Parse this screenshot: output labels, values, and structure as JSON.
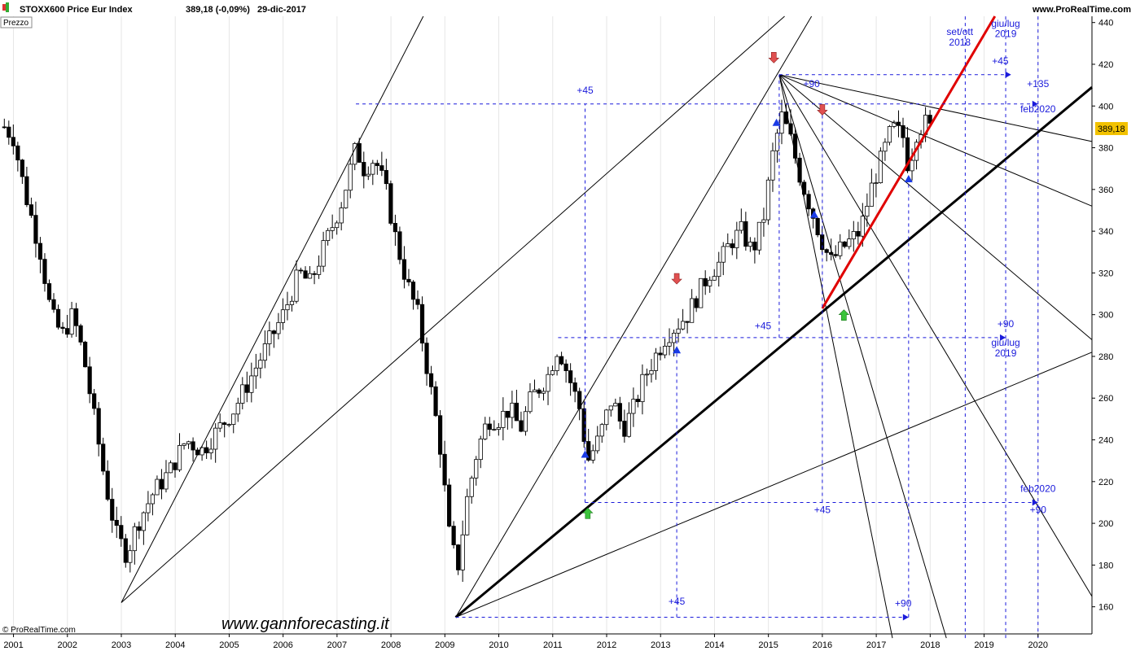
{
  "header": {
    "symbol": "STOXX600 Price Eur Index",
    "quote": "389,18 (-0,09%)",
    "date": "29-dic-2017",
    "site": "www.ProRealTime.com",
    "panel_label": "Prezzo"
  },
  "footer": {
    "copyright": "© ProRealTime.com",
    "watermark": "www.gannforecasting.it"
  },
  "colors": {
    "up_candle": "#ffffff",
    "down_candle": "#000000",
    "guide": "#1a1adb",
    "red_line": "#e00000",
    "last_price_bg": "#f2c200"
  },
  "chart_data": {
    "type": "candlestick",
    "title": "STOXX600 Price Eur Index",
    "ylim": [
      147,
      443
    ],
    "xlim": [
      2000.75,
      2021.0
    ],
    "y_ticks": [
      160,
      180,
      200,
      220,
      240,
      260,
      280,
      300,
      320,
      340,
      360,
      380,
      400,
      420,
      440
    ],
    "x_ticks": [
      2001,
      2002,
      2003,
      2004,
      2005,
      2006,
      2007,
      2008,
      2009,
      2010,
      2011,
      2012,
      2013,
      2014,
      2015,
      2016,
      2017,
      2018,
      2019,
      2020
    ],
    "last_price": "389,18",
    "close_path": [
      [
        2000.83,
        390
      ],
      [
        2001.0,
        385
      ],
      [
        2001.2,
        360
      ],
      [
        2001.5,
        330
      ],
      [
        2001.7,
        300
      ],
      [
        2001.9,
        290
      ],
      [
        2002.1,
        300
      ],
      [
        2002.3,
        280
      ],
      [
        2002.5,
        250
      ],
      [
        2002.7,
        220
      ],
      [
        2002.9,
        195
      ],
      [
        2003.1,
        185
      ],
      [
        2003.3,
        200
      ],
      [
        2003.6,
        215
      ],
      [
        2003.9,
        225
      ],
      [
        2004.2,
        240
      ],
      [
        2004.5,
        235
      ],
      [
        2004.8,
        245
      ],
      [
        2005.1,
        255
      ],
      [
        2005.4,
        270
      ],
      [
        2005.7,
        285
      ],
      [
        2006.0,
        300
      ],
      [
        2006.3,
        320
      ],
      [
        2006.5,
        315
      ],
      [
        2006.8,
        335
      ],
      [
        2007.1,
        355
      ],
      [
        2007.35,
        380
      ],
      [
        2007.5,
        370
      ],
      [
        2007.7,
        375
      ],
      [
        2007.9,
        360
      ],
      [
        2008.1,
        335
      ],
      [
        2008.3,
        315
      ],
      [
        2008.5,
        300
      ],
      [
        2008.7,
        270
      ],
      [
        2008.9,
        240
      ],
      [
        2009.1,
        190
      ],
      [
        2009.25,
        180
      ],
      [
        2009.4,
        210
      ],
      [
        2009.6,
        235
      ],
      [
        2009.8,
        250
      ],
      [
        2010.0,
        250
      ],
      [
        2010.2,
        255
      ],
      [
        2010.4,
        245
      ],
      [
        2010.6,
        260
      ],
      [
        2010.9,
        270
      ],
      [
        2011.1,
        285
      ],
      [
        2011.3,
        270
      ],
      [
        2011.5,
        255
      ],
      [
        2011.65,
        230
      ],
      [
        2011.85,
        240
      ],
      [
        2012.1,
        260
      ],
      [
        2012.3,
        245
      ],
      [
        2012.5,
        255
      ],
      [
        2012.7,
        270
      ],
      [
        2012.9,
        280
      ],
      [
        2013.1,
        290
      ],
      [
        2013.3,
        295
      ],
      [
        2013.5,
        300
      ],
      [
        2013.7,
        310
      ],
      [
        2013.9,
        320
      ],
      [
        2014.1,
        325
      ],
      [
        2014.3,
        335
      ],
      [
        2014.5,
        340
      ],
      [
        2014.7,
        330
      ],
      [
        2014.9,
        345
      ],
      [
        2015.1,
        380
      ],
      [
        2015.25,
        395
      ],
      [
        2015.4,
        385
      ],
      [
        2015.6,
        365
      ],
      [
        2015.8,
        350
      ],
      [
        2016.0,
        335
      ],
      [
        2016.15,
        325
      ],
      [
        2016.3,
        330
      ],
      [
        2016.5,
        335
      ],
      [
        2016.7,
        340
      ],
      [
        2016.9,
        360
      ],
      [
        2017.1,
        375
      ],
      [
        2017.3,
        390
      ],
      [
        2017.5,
        385
      ],
      [
        2017.6,
        370
      ],
      [
        2017.75,
        388
      ],
      [
        2017.9,
        392
      ],
      [
        2018.0,
        389
      ]
    ],
    "trend_lines": [
      {
        "from": [
          2003.0,
          162
        ],
        "to": [
          2008.6,
          443
        ]
      },
      {
        "from": [
          2003.0,
          162
        ],
        "to": [
          2015.3,
          443
        ]
      },
      {
        "from": [
          2009.2,
          155
        ],
        "to": [
          2015.8,
          443
        ]
      },
      {
        "from": [
          2009.2,
          155
        ],
        "to": [
          2021.0,
          282
        ]
      },
      {
        "from": [
          2015.2,
          415
        ],
        "to": [
          2017.3,
          145
        ]
      },
      {
        "from": [
          2015.2,
          415
        ],
        "to": [
          2018.3,
          145
        ]
      },
      {
        "from": [
          2015.2,
          415
        ],
        "to": [
          2021.0,
          165
        ]
      },
      {
        "from": [
          2015.2,
          415
        ],
        "to": [
          2021.0,
          288
        ]
      },
      {
        "from": [
          2015.2,
          415
        ],
        "to": [
          2021.0,
          352
        ]
      },
      {
        "from": [
          2015.2,
          415
        ],
        "to": [
          2021.0,
          383
        ]
      }
    ],
    "thick_lines": [
      {
        "from": [
          2009.2,
          155
        ],
        "to": [
          2021.0,
          409
        ],
        "color": "#000000"
      },
      {
        "from": [
          2016.0,
          303
        ],
        "to": [
          2019.2,
          443
        ],
        "color": "#e00000"
      }
    ],
    "h_guides": [
      {
        "y": 415,
        "x1": 2015.2,
        "x2": 2019.5
      },
      {
        "y": 401,
        "x1": 2007.35,
        "x2": 2020.0
      },
      {
        "y": 289,
        "x1": 2011.1,
        "x2": 2019.4
      },
      {
        "y": 210,
        "x1": 2011.6,
        "x2": 2020.0
      },
      {
        "y": 155,
        "x1": 2009.2,
        "x2": 2017.6
      }
    ],
    "v_guides": [
      {
        "x": 2011.6,
        "y1": 210,
        "y2": 401
      },
      {
        "x": 2013.3,
        "y1": 155,
        "y2": 289
      },
      {
        "x": 2015.2,
        "y1": 289,
        "y2": 415
      },
      {
        "x": 2016.0,
        "y1": 210,
        "y2": 401
      },
      {
        "x": 2017.6,
        "y1": 155,
        "y2": 365
      },
      {
        "x": 2018.65,
        "y1": 145,
        "y2": 443
      },
      {
        "x": 2019.4,
        "y1": 145,
        "y2": 443
      },
      {
        "x": 2020.0,
        "y1": 145,
        "y2": 443
      }
    ],
    "annotations": [
      {
        "text": "+45",
        "x": 2011.6,
        "y": 406
      },
      {
        "text": "+90",
        "x": 2015.8,
        "y": 409
      },
      {
        "text": "set/ott",
        "x": 2018.55,
        "y": 434
      },
      {
        "text": "2018",
        "x": 2018.55,
        "y": 429
      },
      {
        "text": "giu/lug",
        "x": 2019.4,
        "y": 438
      },
      {
        "text": "2019",
        "x": 2019.4,
        "y": 433
      },
      {
        "text": "+45",
        "x": 2019.3,
        "y": 420
      },
      {
        "text": "+135",
        "x": 2020.0,
        "y": 409
      },
      {
        "text": "feb2020",
        "x": 2020.0,
        "y": 397
      },
      {
        "text": "+45",
        "x": 2014.9,
        "y": 293
      },
      {
        "text": "+90",
        "x": 2019.4,
        "y": 294
      },
      {
        "text": "giu/lug",
        "x": 2019.4,
        "y": 285
      },
      {
        "text": "2019",
        "x": 2019.4,
        "y": 280
      },
      {
        "text": "feb2020",
        "x": 2020.0,
        "y": 215
      },
      {
        "text": "+45",
        "x": 2016.0,
        "y": 205
      },
      {
        "text": "+90",
        "x": 2020.0,
        "y": 205
      },
      {
        "text": "+45",
        "x": 2013.3,
        "y": 161
      },
      {
        "text": "+90",
        "x": 2017.5,
        "y": 160
      }
    ],
    "markers": [
      {
        "type": "down-red",
        "x": 2015.1,
        "y": 423
      },
      {
        "type": "down-red",
        "x": 2016.0,
        "y": 398
      },
      {
        "type": "down-red",
        "x": 2013.3,
        "y": 317
      },
      {
        "type": "up-green",
        "x": 2011.65,
        "y": 205
      },
      {
        "type": "up-green",
        "x": 2016.4,
        "y": 300
      },
      {
        "type": "up-blue",
        "x": 2011.6,
        "y": 233
      },
      {
        "type": "up-blue",
        "x": 2013.3,
        "y": 283
      },
      {
        "type": "up-blue",
        "x": 2015.15,
        "y": 392
      },
      {
        "type": "up-blue",
        "x": 2015.85,
        "y": 348
      },
      {
        "type": "up-blue",
        "x": 2017.6,
        "y": 365
      }
    ]
  }
}
